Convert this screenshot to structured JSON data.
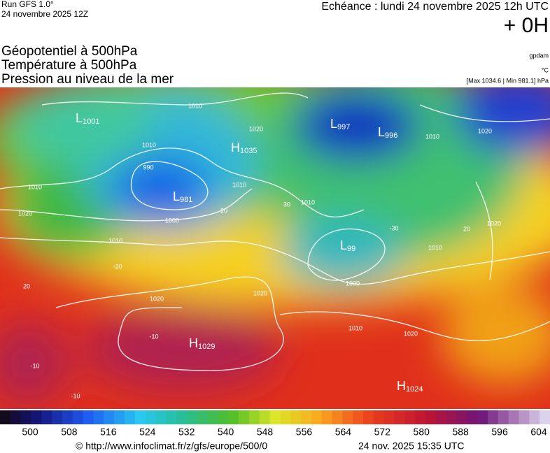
{
  "header": {
    "run": "Run GFS 1.0°",
    "run_date": "24 novembre 2025 12Z",
    "echeance": "Echéance : lundi 24 novembre 2025 12h UTC",
    "offset": "+ 0H"
  },
  "titles": [
    "Géopotentiel à 500hPa",
    "Température à 500hPa",
    "Pression au niveau de la mer"
  ],
  "units": {
    "geopotential": "gpdam",
    "temperature": "°C",
    "pressure": "[Max 1034.6 | Min 981.1] hPa"
  },
  "centers": [
    {
      "letter": "L",
      "value": "1001"
    },
    {
      "letter": "L",
      "value": "981"
    },
    {
      "letter": "H",
      "value": "1035"
    },
    {
      "letter": "L",
      "value": "997"
    },
    {
      "letter": "L",
      "value": "996"
    },
    {
      "letter": "L",
      "value": "99"
    },
    {
      "letter": "H",
      "value": "1029"
    },
    {
      "letter": "H",
      "value": "1024"
    }
  ],
  "contour_labels": [
    "1010",
    "990",
    "1010",
    "1010",
    "1020",
    "1000",
    "1010",
    "20",
    "-20",
    "20",
    "1020",
    "1020",
    "1010",
    "1010",
    "1000",
    "1010",
    "1020",
    "1010",
    "1020",
    "20",
    "1020",
    "1010",
    "-10",
    "-10",
    "-10",
    "1020",
    "30",
    "-30"
  ],
  "colorbar": {
    "ticks": [
      500,
      508,
      516,
      524,
      532,
      540,
      548,
      556,
      564,
      572,
      580,
      588,
      596,
      604
    ]
  },
  "footer": {
    "url": "© http://www.infoclimat.fr/z/gfs/europe/500/0",
    "generated": "24 nov. 2025 15:35 UTC"
  }
}
